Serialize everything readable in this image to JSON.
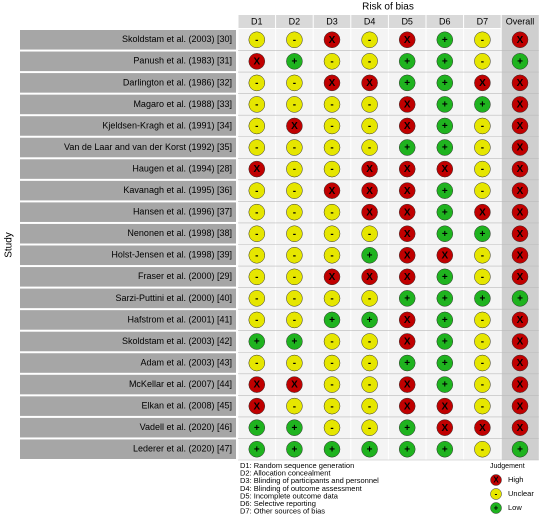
{
  "title": "Risk of bias",
  "y_label": "Study",
  "columns": [
    "D1",
    "D2",
    "D3",
    "D4",
    "D5",
    "D6",
    "D7",
    "Overall"
  ],
  "table": {
    "rows": [
      {
        "study": "Skoldstam et al. (2003) [30]",
        "judgements": [
          "-",
          "-",
          "X",
          "-",
          "X",
          "+",
          "-",
          "X"
        ]
      },
      {
        "study": "Panush et al. (1983) [31]",
        "judgements": [
          "X",
          "+",
          "-",
          "-",
          "+",
          "+",
          "-",
          "+"
        ]
      },
      {
        "study": "Darlington et al. (1986) [32]",
        "judgements": [
          "-",
          "-",
          "X",
          "X",
          "+",
          "+",
          "X",
          "X"
        ]
      },
      {
        "study": "Magaro et al. (1988) [33]",
        "judgements": [
          "-",
          "-",
          "-",
          "-",
          "X",
          "+",
          "+",
          "X"
        ]
      },
      {
        "study": "Kjeldsen-Kragh et al. (1991) [34]",
        "judgements": [
          "-",
          "X",
          "-",
          "-",
          "X",
          "+",
          "-",
          "X"
        ]
      },
      {
        "study": "Van de Laar and van der Korst (1992) [35]",
        "judgements": [
          "-",
          "-",
          "-",
          "-",
          "+",
          "+",
          "-",
          "X"
        ]
      },
      {
        "study": "Haugen et al. (1994) [28]",
        "judgements": [
          "X",
          "-",
          "-",
          "X",
          "X",
          "X",
          "-",
          "X"
        ]
      },
      {
        "study": "Kavanagh et al. (1995) [36]",
        "judgements": [
          "-",
          "-",
          "X",
          "X",
          "X",
          "+",
          "-",
          "X"
        ]
      },
      {
        "study": "Hansen et al. (1996) [37]",
        "judgements": [
          "-",
          "-",
          "-",
          "X",
          "X",
          "+",
          "X",
          "X"
        ]
      },
      {
        "study": "Nenonen et al. (1998) [38]",
        "judgements": [
          "-",
          "-",
          "-",
          "-",
          "X",
          "+",
          "+",
          "X"
        ]
      },
      {
        "study": "Holst-Jensen et al. (1998) [39]",
        "judgements": [
          "-",
          "-",
          "-",
          "+",
          "X",
          "X",
          "-",
          "X"
        ]
      },
      {
        "study": "Fraser et al. (2000) [29]",
        "judgements": [
          "-",
          "-",
          "X",
          "X",
          "X",
          "+",
          "-",
          "X"
        ]
      },
      {
        "study": "Sarzi-Puttini et al. (2000) [40]",
        "judgements": [
          "-",
          "-",
          "-",
          "-",
          "+",
          "+",
          "+",
          "+"
        ]
      },
      {
        "study": "Hafstrom et al. (2001) [41]",
        "judgements": [
          "-",
          "-",
          "+",
          "+",
          "X",
          "+",
          "-",
          "X"
        ]
      },
      {
        "study": "Skoldstam et al. (2003) [42]",
        "judgements": [
          "+",
          "+",
          "-",
          "-",
          "X",
          "+",
          "-",
          "X"
        ]
      },
      {
        "study": "Adam et al. (2003) [43]",
        "judgements": [
          "-",
          "-",
          "-",
          "-",
          "+",
          "+",
          "-",
          "X"
        ]
      },
      {
        "study": "McKellar et al. (2007) [44]",
        "judgements": [
          "X",
          "X",
          "-",
          "-",
          "X",
          "+",
          "-",
          "X"
        ]
      },
      {
        "study": "Elkan et al. (2008) [45]",
        "judgements": [
          "X",
          "-",
          "-",
          "-",
          "X",
          "X",
          "-",
          "X"
        ]
      },
      {
        "study": "Vadell et al. (2020) [46]",
        "judgements": [
          "+",
          "+",
          "-",
          "-",
          "+",
          "X",
          "X",
          "X"
        ]
      },
      {
        "study": "Lederer et al.  (2020) [47]",
        "judgements": [
          "+",
          "+",
          "+",
          "+",
          "+",
          "+",
          "-",
          "+"
        ]
      }
    ]
  },
  "domain_notes": [
    "D1: Random sequence generation",
    "D2: Allocation concealment",
    "D3: Blinding of participants and personnel",
    "D4: Blinding of outcome assessment",
    "D5: Incomplete outcome data",
    "D6: Selective reporting",
    "D7: Other sources of bias"
  ],
  "legend": {
    "title": "Judgement",
    "items": [
      {
        "symbol": "X",
        "label": "High",
        "color": "#c00000"
      },
      {
        "symbol": "-",
        "label": "Unclear",
        "color": "#e6e600"
      },
      {
        "symbol": "+",
        "label": "Low",
        "color": "#1fb31f"
      }
    ]
  }
}
